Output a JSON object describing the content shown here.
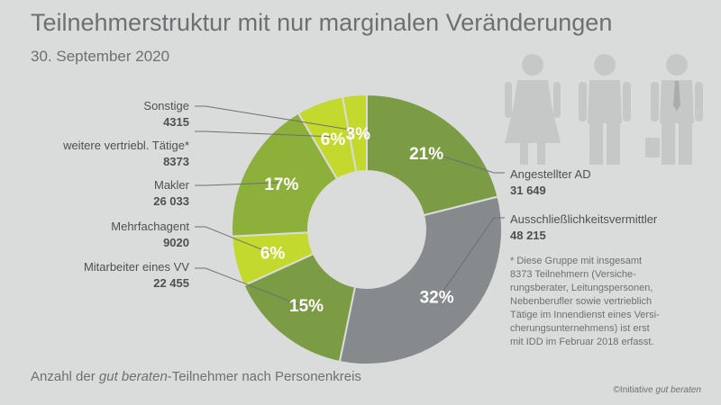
{
  "title": "Teilnehmerstruktur mit nur marginalen Veränderungen",
  "subtitle": "30. September 2020",
  "footer": {
    "prefix": "Anzahl der ",
    "italic": "gut beraten",
    "suffix": "-Teilnehmer nach Personenkreis"
  },
  "copyright": {
    "prefix": "©Initiative ",
    "italic": "gut beraten"
  },
  "note": {
    "lines": [
      "* Diese Gruppe mit insgesamt",
      "8373 Teilnehmern (Versiche-",
      "rungsberater, Leitungspersonen,",
      "Nebenberufler sowie vertrieblich",
      "Tätige im Innendienst eines Versi-",
      "cherungsunternehmens) ist erst",
      "mit IDD im Februar 2018 erfasst."
    ]
  },
  "colors": {
    "background": "#dadcdc",
    "dark_green": "#7b9b45",
    "mid_green": "#8db03b",
    "lime": "#c4d92e",
    "grey": "#868a8d",
    "icon_grey": "#c6c8c8"
  },
  "icons": [
    "woman-figure-icon",
    "man-figure-icon",
    "businessman-figure-icon"
  ],
  "chart_data": {
    "type": "pie",
    "donut": true,
    "categories": [
      "Angestellter AD",
      "Ausschließlichkeitsvermittler",
      "Mitarbeiter eines VV",
      "Mehrfachagent",
      "Makler",
      "weitere vertriebl. Tätige*",
      "Sonstige"
    ],
    "values": [
      31649,
      48215,
      22455,
      9020,
      26033,
      8373,
      4315
    ],
    "value_labels": [
      "31 649",
      "48 215",
      "22 455",
      "9020",
      "26 033",
      "8373",
      "4315"
    ],
    "percent_labels": [
      "21%",
      "32%",
      "15%",
      "6%",
      "17%",
      "6%",
      "3%"
    ],
    "colors": [
      "#7b9b45",
      "#868a8d",
      "#7b9b45",
      "#c4d92e",
      "#8db03b",
      "#c4d92e",
      "#c4d92e"
    ]
  }
}
